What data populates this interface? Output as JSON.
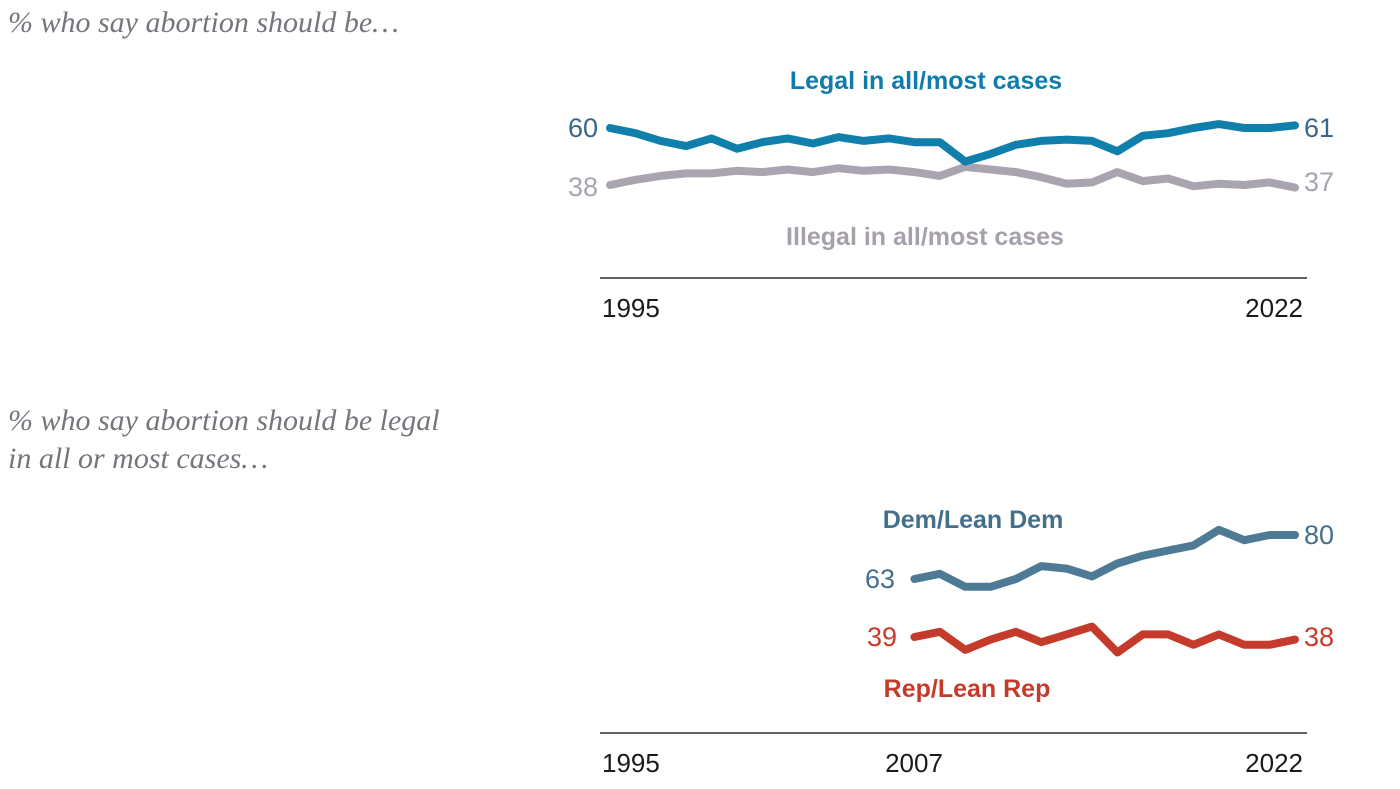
{
  "chart_data": [
    {
      "type": "line",
      "title": "% who say abortion should be…",
      "x_ticks": [
        "1995",
        "2022"
      ],
      "x_range": [
        1995,
        2022
      ],
      "axis_color": "#2e2e2e",
      "series": [
        {
          "name": "Legal in all/most cases",
          "color": "#107fab",
          "legend_color": "#0f7cab",
          "value_label_color": "#35688a",
          "start_label": "60",
          "end_label": "61",
          "years": [
            1995,
            1996,
            1997,
            1998,
            1999,
            2000,
            2001,
            2002,
            2003,
            2004,
            2005,
            2006,
            2007,
            2008,
            2009,
            2010,
            2011,
            2012,
            2013,
            2014,
            2015,
            2016,
            2017,
            2018,
            2019,
            2020,
            2021,
            2022
          ],
          "values": [
            60,
            58,
            55,
            53,
            56,
            52,
            54.5,
            56,
            54,
            56.5,
            55,
            56,
            54.5,
            54.5,
            47,
            50,
            53.5,
            55,
            55.5,
            55,
            51,
            57,
            58,
            60,
            61.5,
            60,
            60,
            61
          ]
        },
        {
          "name": "Illegal in all/most cases",
          "color": "#a9a4af",
          "legend_color": "#a5a0ab",
          "value_label_color": "#a8a4b0",
          "start_label": "38",
          "end_label": "37",
          "years": [
            1995,
            1996,
            1997,
            1998,
            1999,
            2000,
            2001,
            2002,
            2003,
            2004,
            2005,
            2006,
            2007,
            2008,
            2009,
            2010,
            2011,
            2012,
            2013,
            2014,
            2015,
            2016,
            2017,
            2018,
            2019,
            2020,
            2021,
            2022
          ],
          "values": [
            38,
            40,
            41.5,
            42.5,
            42.5,
            43.5,
            43,
            44,
            43,
            44.5,
            43.5,
            44,
            43,
            41.5,
            45,
            44,
            43,
            41,
            38.5,
            39,
            43,
            39.5,
            40.5,
            37.5,
            38.5,
            38,
            39,
            37
          ]
        }
      ]
    },
    {
      "type": "line",
      "title_line1": "% who say abortion should be legal",
      "title_line2": "in all or most cases…",
      "x_ticks": [
        "1995",
        "2007",
        "2022"
      ],
      "x_range": [
        1995,
        2022
      ],
      "axis_color": "#2e2e2e",
      "series": [
        {
          "name": "Dem/Lean Dem",
          "color": "#4e7a96",
          "legend_color": "#44708d",
          "value_label_color": "#44708d",
          "start_label": "63",
          "end_label": "80",
          "years": [
            2007,
            2008,
            2009,
            2010,
            2011,
            2012,
            2013,
            2014,
            2015,
            2016,
            2017,
            2018,
            2019,
            2020,
            2021,
            2022
          ],
          "values": [
            63,
            65,
            60,
            60,
            63,
            68,
            67,
            64,
            69,
            72,
            74,
            76,
            82,
            78,
            80,
            80
          ]
        },
        {
          "name": "Rep/Lean Rep",
          "color": "#c43b2c",
          "legend_color": "#c43b2c",
          "value_label_color": "#cb3a28",
          "start_label": "39",
          "end_label": "38",
          "years": [
            2007,
            2008,
            2009,
            2010,
            2011,
            2012,
            2013,
            2014,
            2015,
            2016,
            2017,
            2018,
            2019,
            2020,
            2021,
            2022
          ],
          "values": [
            39,
            41,
            34,
            38,
            41,
            37,
            40,
            43,
            33,
            40,
            40,
            36,
            40,
            36,
            36,
            38
          ]
        }
      ]
    }
  ]
}
